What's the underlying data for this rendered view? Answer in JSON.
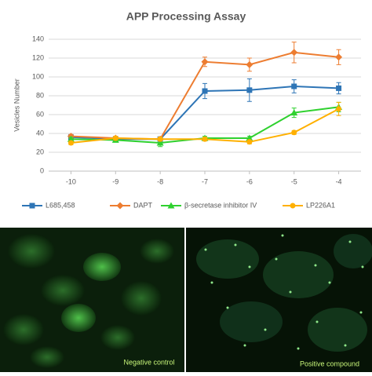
{
  "chart_data": {
    "type": "line",
    "title": "APP Processing Assay",
    "y_label": "Vesicles Number",
    "x": [
      -10,
      -9,
      -8,
      -7,
      -6,
      -5,
      -4
    ],
    "xlim": [
      -10.5,
      -3.5
    ],
    "xticks": [
      -10,
      -9,
      -8,
      -7,
      -6,
      -5,
      -4
    ],
    "ylim": [
      0,
      140
    ],
    "yticks": [
      0,
      20,
      40,
      60,
      80,
      100,
      120,
      140
    ],
    "grid": true,
    "legend": "bottom",
    "series": [
      {
        "name": "L685,458",
        "color": "#2e75b6",
        "marker": "square",
        "values": [
          36,
          34,
          34,
          85,
          86,
          90,
          88
        ],
        "errors": [
          2,
          2,
          2,
          8,
          12,
          7,
          6
        ]
      },
      {
        "name": "DAPT",
        "color": "#ed7d31",
        "marker": "diamond",
        "values": [
          37,
          35,
          34,
          116,
          113,
          126,
          121
        ],
        "errors": [
          2,
          2,
          2,
          5,
          7,
          11,
          8
        ]
      },
      {
        "name": "β-secretase inhibitor IV",
        "color": "#2fd12f",
        "marker": "triangle",
        "values": [
          34,
          33,
          30,
          35,
          35,
          62,
          68
        ],
        "errors": [
          2,
          2,
          4,
          2,
          2,
          5,
          5
        ]
      },
      {
        "name": "LP226A1",
        "color": "#ffb000",
        "marker": "circle",
        "values": [
          30,
          35,
          34,
          34,
          31,
          41,
          66
        ],
        "errors": [
          2,
          2,
          2,
          2,
          2,
          2,
          7
        ]
      }
    ]
  },
  "image_labels": [
    "Negative control",
    "Positive compound"
  ]
}
